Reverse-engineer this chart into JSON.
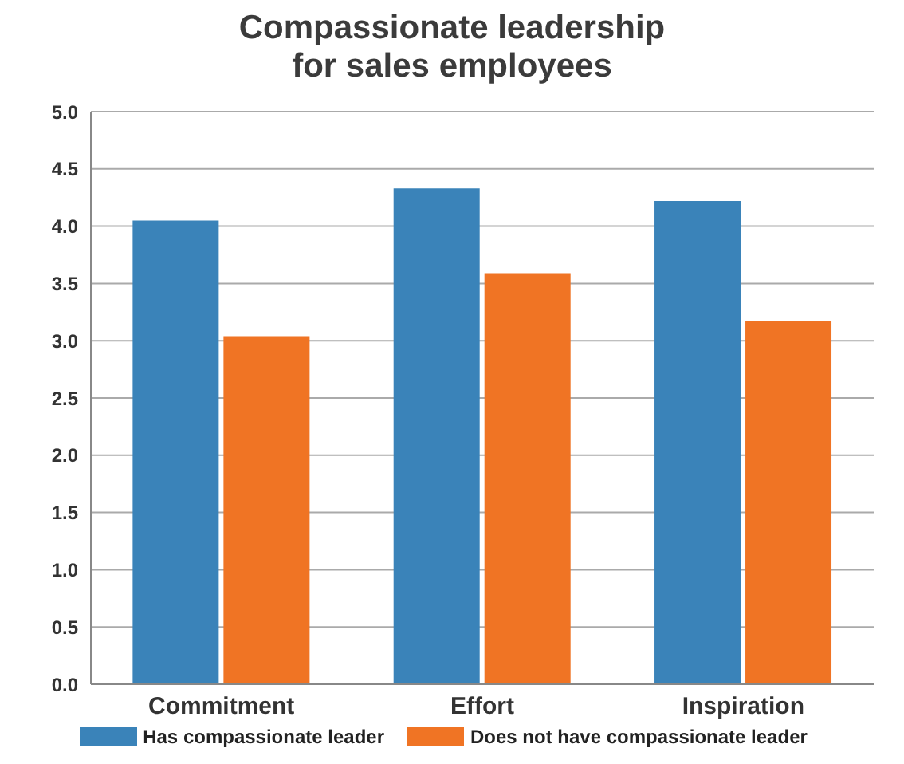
{
  "chart_data": {
    "type": "bar",
    "title": "Compassionate leadership for sales employees",
    "categories": [
      "Commitment",
      "Effort",
      "Inspiration"
    ],
    "series": [
      {
        "name": "Has compassionate leader",
        "color": "#3a83b9",
        "values": [
          4.05,
          4.33,
          4.22
        ]
      },
      {
        "name": "Does not have compassionate leader",
        "color": "#f07424",
        "values": [
          3.04,
          3.59,
          3.17
        ]
      }
    ],
    "ylim": [
      0,
      5
    ],
    "yticks": [
      {
        "value": 0,
        "label": "0.0"
      },
      {
        "value": 0.5,
        "label": "0.5"
      },
      {
        "value": 1,
        "label": "1.0"
      },
      {
        "value": 1.5,
        "label": "1.5"
      },
      {
        "value": 2,
        "label": "2.0"
      },
      {
        "value": 2.5,
        "label": "2.5"
      },
      {
        "value": 3,
        "label": "3.0"
      },
      {
        "value": 3.5,
        "label": "3.5"
      },
      {
        "value": 4,
        "label": "4.0"
      },
      {
        "value": 4.5,
        "label": "4.5"
      },
      {
        "value": 5,
        "label": "5.0"
      }
    ],
    "grid": "y",
    "legend": "bottom"
  }
}
